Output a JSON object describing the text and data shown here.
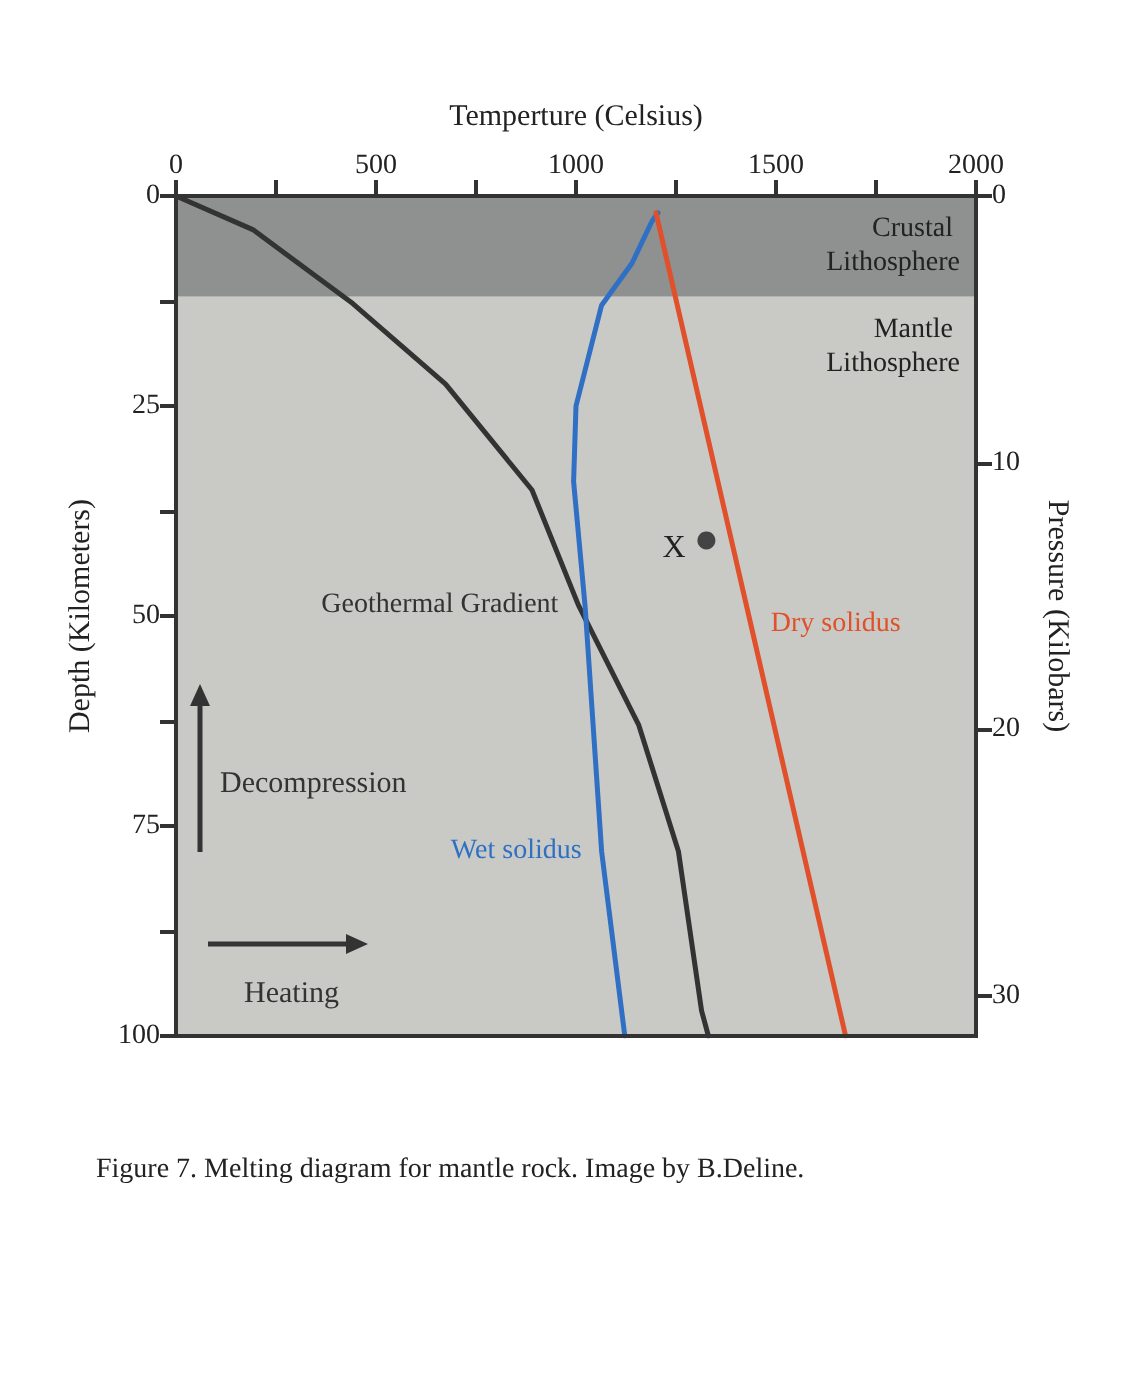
{
  "chart_data": {
    "type": "line",
    "xlabel": "Temperture (Celsius)",
    "ylabel": "Depth (Kilometers)",
    "y2label": "Pressure (Kilobars)",
    "xlim": [
      0,
      2000
    ],
    "xticks": [
      0,
      {
        "value": 250,
        "label": null
      },
      500,
      {
        "value": 750,
        "label": null
      },
      1000,
      {
        "value": 1250,
        "label": null
      },
      1500,
      {
        "value": 1750,
        "label": null
      },
      2000
    ],
    "ylim": [
      100,
      0
    ],
    "yticks": [
      0,
      {
        "value": 12.5,
        "label": null
      },
      25,
      {
        "value": 37.5,
        "label": null
      },
      50,
      {
        "value": 62.5,
        "label": null
      },
      75,
      {
        "value": 87.5,
        "label": null
      },
      100
    ],
    "y2lim": [
      31.5,
      0
    ],
    "y2ticks": [
      0,
      10,
      20,
      30
    ],
    "series": [
      {
        "name": "Geothermal Gradient",
        "color": "#333333",
        "x": [
          0,
          192,
          442,
          674,
          890,
          1006,
          1157,
          1256,
          1314,
          1331
        ],
        "values": [
          0,
          4,
          12.8,
          22.4,
          35,
          48.7,
          63,
          78,
          97,
          100
        ]
      },
      {
        "name": "Wet solidus",
        "color": "#2f6fc4",
        "x": [
          1205,
          1190,
          1140,
          1064,
          1000,
          994,
          1023,
          1064,
          1122
        ],
        "values": [
          2,
          3,
          8,
          13,
          25,
          34,
          49,
          78,
          100
        ]
      },
      {
        "name": "Dry solidus",
        "color": "#e0502a",
        "x": [
          1200,
          1437,
          1674
        ],
        "values": [
          2,
          51,
          100
        ]
      },
      {
        "type": "scatter",
        "marker": "circle",
        "color": "#222222",
        "x": [
          1326
        ],
        "values": [
          41
        ]
      }
    ],
    "bands": [
      {
        "axis": "y",
        "from": 0,
        "to": 12,
        "label": "Crustal Lithosphere",
        "color": "#8e918f"
      },
      {
        "axis": "y",
        "from": 12,
        "to": 100,
        "label": "Mantle Lithosphere",
        "color": "#c9cac6"
      }
    ],
    "annotations": [
      "Decompression",
      "Heating",
      "Figure 7. Melting diagram for mantle rock. Image by B.Deline.",
      {
        "text": "X",
        "x": 1326,
        "y": 41
      }
    ],
    "marker": "none",
    "line_style": "solid",
    "grid": false,
    "legend": false
  }
}
